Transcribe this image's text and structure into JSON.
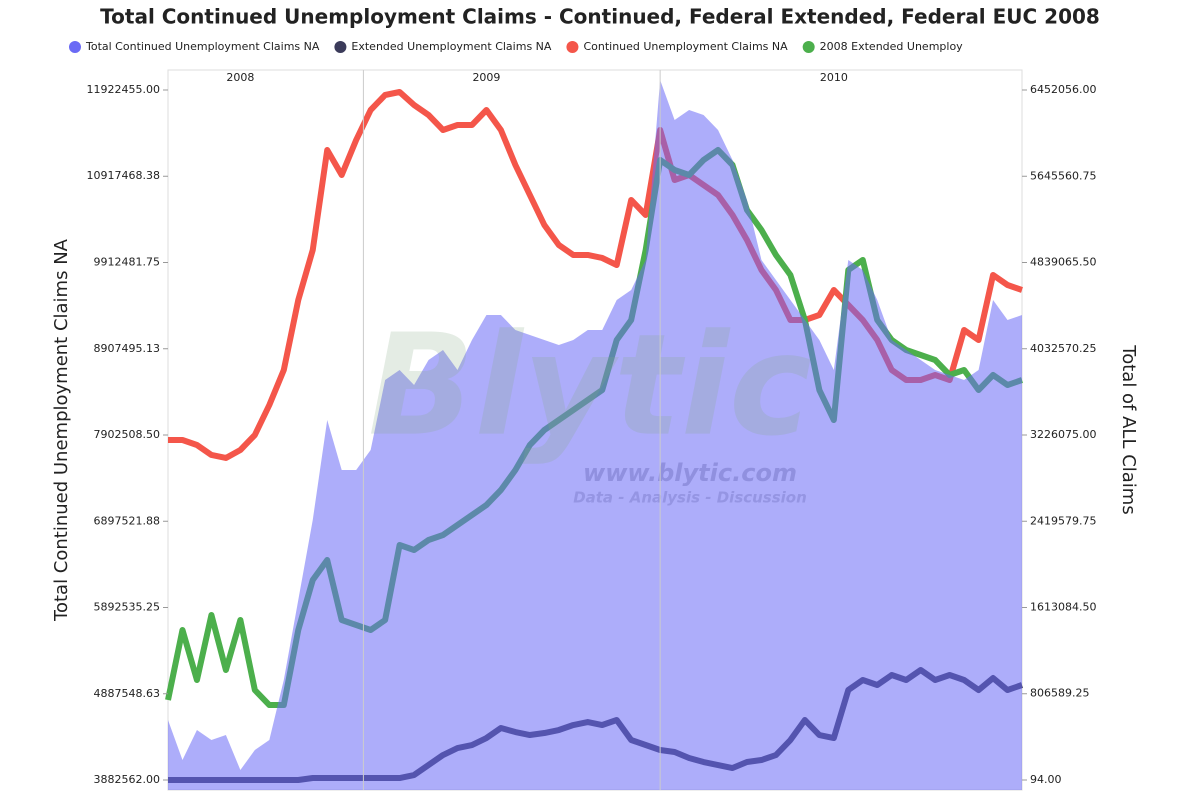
{
  "chart_data": {
    "type": "line",
    "title": "Total Continued Unemployment Claims - Continued, Federal Extended, Federal EUC 2008",
    "y_label": "Total Continued Unemployment Claims NA",
    "y2_label": "Total of ALL Claims",
    "watermark": {
      "logo": "Blytic",
      "url": "www.blytic.com",
      "tagline": "Data - Analysis - Discussion"
    },
    "categories": [
      null,
      null,
      null,
      null,
      null,
      "2008",
      null,
      null,
      null,
      null,
      null,
      null,
      null,
      null,
      null,
      null,
      null,
      null,
      null,
      null,
      null,
      null,
      "2009",
      null,
      null,
      null,
      null,
      null,
      null,
      null,
      null,
      null,
      null,
      null,
      null,
      null,
      null,
      null,
      null,
      null,
      null,
      null,
      null,
      null,
      null,
      null,
      "2010",
      null,
      null,
      null,
      null,
      null,
      null,
      null,
      null,
      null,
      null,
      null,
      null,
      null
    ],
    "ylim": [
      3766042,
      12155495
    ],
    "yticks": [
      {
        "value": 3882562.0,
        "label": "3882562.00"
      },
      {
        "value": 4887548.63,
        "label": "4887548.63"
      },
      {
        "value": 5892535.25,
        "label": "5892535.25"
      },
      {
        "value": 6897521.88,
        "label": "6897521.88"
      },
      {
        "value": 7902508.5,
        "label": "7902508.50"
      },
      {
        "value": 8907495.13,
        "label": "8907495.13"
      },
      {
        "value": 9912481.75,
        "label": "9912481.75"
      },
      {
        "value": 10917468.38,
        "label": "10917468.38"
      },
      {
        "value": 11922455.0,
        "label": "11922455.00"
      }
    ],
    "y2lim": [
      -93416,
      6639076
    ],
    "y2ticks": [
      {
        "value": 94.0,
        "label": "94.00"
      },
      {
        "value": 806589.25,
        "label": "806589.25"
      },
      {
        "value": 1613084.5,
        "label": "1613084.50"
      },
      {
        "value": 2419579.75,
        "label": "2419579.75"
      },
      {
        "value": 3226075.0,
        "label": "3226075.00"
      },
      {
        "value": 4032570.25,
        "label": "4032570.25"
      },
      {
        "value": 4839065.5,
        "label": "4839065.50"
      },
      {
        "value": 5645560.75,
        "label": "5645560.75"
      },
      {
        "value": 6452056.0,
        "label": "6452056.00"
      }
    ],
    "series": [
      {
        "name": "Total Continued Unemployment Claims NA",
        "color": "#6a6af5",
        "type": "area",
        "axis": "y2",
        "values": [
          560926,
          186886,
          467416,
          373906,
          420661,
          93376,
          280396,
          373906,
          934966,
          1683046,
          2431126,
          3366226,
          2898676,
          2898676,
          3085696,
          3740266,
          3833776,
          3693511,
          3927286,
          4020796,
          3833776,
          4114306,
          4348081,
          4348081,
          4207816,
          4161061,
          4114306,
          4067551,
          4114306,
          4207816,
          4207816,
          4488346,
          4581856,
          4862386,
          6545566,
          6171526,
          6265036,
          6218281,
          6078016,
          5797486,
          5423446,
          4862386,
          4675366,
          4488346,
          4301326,
          4114306,
          3833776,
          4862386,
          4768876,
          4488346,
          4114306,
          4020796,
          3927286,
          3833776,
          3787021,
          3740266,
          3833776,
          4488346,
          4301326,
          4348081
        ]
      },
      {
        "name": "Extended Unemployment Claims NA",
        "color": "#3b3b5a",
        "type": "line",
        "axis": "y2",
        "values": [
          94,
          94,
          94,
          94,
          94,
          94,
          94,
          94,
          94,
          94,
          18702,
          18702,
          18702,
          18702,
          18702,
          18702,
          18702,
          46621,
          140131,
          233641,
          299098,
          327151,
          392608,
          486118,
          448714,
          420661,
          439363,
          467416,
          514171,
          542224,
          514171,
          560926,
          373906,
          327151,
          280396,
          261694,
          205588,
          168184,
          140131,
          112078,
          168184,
          186886,
          233641,
          373906,
          560926,
          420661,
          392608,
          841456,
          934966,
          888211,
          981721,
          934966,
          1028476,
          934966,
          981721,
          934966,
          841456,
          953668,
          841456,
          888211
        ]
      },
      {
        "name": "Continued Unemployment Claims NA",
        "color": "#f4564a",
        "type": "line",
        "axis": "y",
        "values": [
          7844255,
          7844255,
          7785995,
          7669475,
          7634519,
          7727735,
          7902515,
          8252075,
          8659895,
          9475535,
          10058135,
          11223335,
          10932035,
          11339855,
          11689415,
          11864195,
          11899151,
          11747675,
          11631155,
          11456375,
          11514635,
          11514635,
          11689415,
          11456375,
          11048555,
          10698995,
          10349435,
          10116395,
          9999875,
          9999875,
          9964919,
          9883355,
          10640735,
          10465955,
          11456375,
          10873775,
          10932035,
          10815515,
          10698995,
          10465955,
          10174655,
          9825095,
          9592055,
          9242495,
          9242495,
          9300755,
          9592055,
          9417275,
          9242495,
          9009455,
          8659895,
          8543375,
          8543375,
          8601635,
          8543375,
          9125975,
          9009455,
          9766835,
          9650315,
          9592055
        ]
      },
      {
        "name": "2008 Extended Unemploy",
        "color": "#4caf4c",
        "type": "line",
        "axis": "y2",
        "values": [
          747946,
          1402516,
          934966,
          1542781,
          1028476,
          1496026,
          841456,
          701191,
          701191,
          1402516,
          1870066,
          2057086,
          1496026,
          1449271,
          1402516,
          1496026,
          2197351,
          2150596,
          2244106,
          2290861,
          2384371,
          2477881,
          2571391,
          2711656,
          2898676,
          3132451,
          3272716,
          3366226,
          3459736,
          3553246,
          3646756,
          4114306,
          4301326,
          4955896,
          5797486,
          5703976,
          5657221,
          5797486,
          5890996,
          5750731,
          5329936,
          5142916,
          4909141,
          4722121,
          4301326,
          3646756,
          3366226,
          4768876,
          4862386,
          4301326,
          4114306,
          4020796,
          3974041,
          3927286,
          3787021,
          3833776,
          3646756,
          3787021,
          3693511,
          3740266
        ]
      }
    ]
  }
}
